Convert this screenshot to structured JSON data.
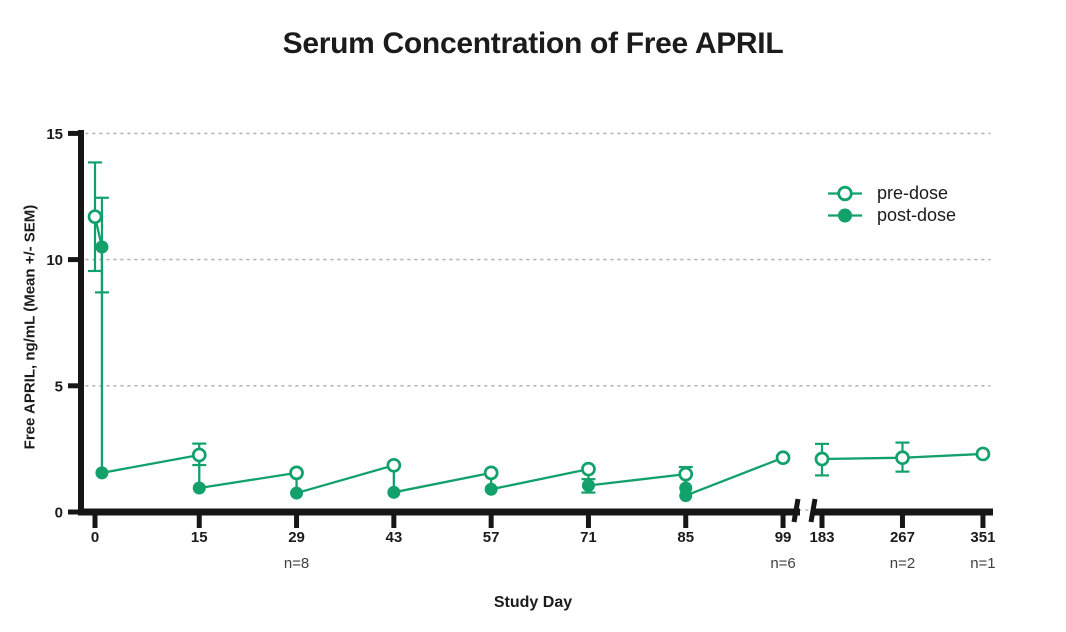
{
  "chart_data": {
    "type": "line",
    "title": "Serum Concentration of Free APRIL",
    "xlabel": "Study Day",
    "ylabel": "Free APRIL, ng/mL (Mean +/- SEM)",
    "ylim": [
      0,
      15
    ],
    "yticks": [
      0,
      5,
      10,
      15
    ],
    "xticks": [
      0,
      15,
      29,
      43,
      57,
      71,
      85,
      99,
      183,
      267,
      351
    ],
    "axis_break_between_days": [
      99,
      183
    ],
    "grid": {
      "horizontal_dotted_at": [
        5,
        10,
        15
      ],
      "color": "#b5b5b5"
    },
    "series_color": "#12a06b",
    "axis_color": "#161616",
    "legend": {
      "position": "upper-right",
      "entries": [
        {
          "label": "pre-dose",
          "marker": "open-circle"
        },
        {
          "label": "post-dose",
          "marker": "filled-circle"
        }
      ]
    },
    "n_labels": [
      {
        "day": 29,
        "label": "n=8"
      },
      {
        "day": 99,
        "label": "n=6"
      },
      {
        "day": 267,
        "label": "n=2"
      },
      {
        "day": 351,
        "label": "n=1"
      }
    ],
    "points": [
      {
        "day": 0,
        "value": 11.7,
        "series": "pre-dose",
        "err_up": 2.15,
        "err_dn": 2.15,
        "segment": 1
      },
      {
        "day": 1,
        "value": 10.5,
        "series": "post-dose",
        "err_up": 1.95,
        "err_dn": 1.8,
        "segment": 1
      },
      {
        "day": 1,
        "value": 1.55,
        "series": "post-dose",
        "segment": 1
      },
      {
        "day": 15,
        "value": 2.26,
        "series": "pre-dose",
        "err_up": 0.45,
        "err_dn": 0.4,
        "segment": 1
      },
      {
        "day": 15,
        "value": 0.95,
        "series": "post-dose",
        "segment": 1
      },
      {
        "day": 29,
        "value": 1.55,
        "series": "pre-dose",
        "segment": 1
      },
      {
        "day": 29,
        "value": 0.75,
        "series": "post-dose",
        "segment": 1
      },
      {
        "day": 43,
        "value": 1.85,
        "series": "pre-dose",
        "segment": 1
      },
      {
        "day": 43,
        "value": 0.78,
        "series": "post-dose",
        "segment": 1
      },
      {
        "day": 57,
        "value": 1.55,
        "series": "pre-dose",
        "segment": 1
      },
      {
        "day": 57,
        "value": 0.9,
        "series": "post-dose",
        "segment": 1
      },
      {
        "day": 71,
        "value": 1.7,
        "series": "pre-dose",
        "segment": 1
      },
      {
        "day": 71,
        "value": 1.05,
        "series": "post-dose",
        "err_up": 0.25,
        "err_dn": 0.28,
        "segment": 1
      },
      {
        "day": 85,
        "value": 1.5,
        "series": "pre-dose",
        "err_up": 0.28,
        "segment": 1
      },
      {
        "day": 85,
        "value": 0.95,
        "series": "post-dose",
        "segment": 1
      },
      {
        "day": 85,
        "value": 0.65,
        "series": "post-dose",
        "segment": 1
      },
      {
        "day": 99,
        "value": 2.15,
        "series": "pre-dose",
        "segment": 1
      },
      {
        "day": 183,
        "value": 2.1,
        "series": "pre-dose",
        "err_up": 0.6,
        "err_dn": 0.65,
        "segment": 2
      },
      {
        "day": 267,
        "value": 2.15,
        "series": "pre-dose",
        "err_up": 0.6,
        "err_dn": 0.55,
        "segment": 2
      },
      {
        "day": 351,
        "value": 2.3,
        "series": "pre-dose",
        "segment": 2
      }
    ],
    "connection": "single sawtooth line through points in chronological order, interrupted at the axis break"
  }
}
